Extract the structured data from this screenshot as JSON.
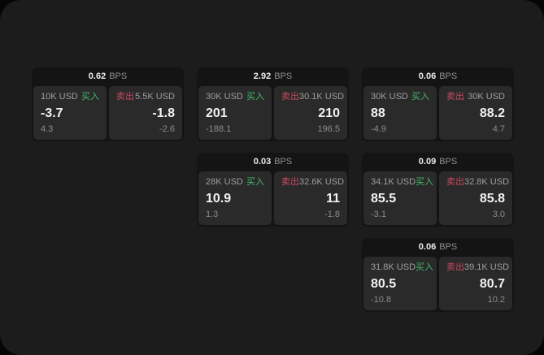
{
  "colors": {
    "buy_accent": "#43b86a",
    "sell_accent": "#c94a5f",
    "panel_background": "#2a2a2a",
    "card_background": "#141414",
    "screen_background": "#1c1c1c"
  },
  "labels": {
    "bps_unit": "BPS",
    "buy": "买入",
    "sell": "卖出"
  },
  "cards": [
    {
      "bps": "0.62",
      "buy": {
        "amount": "10K USD",
        "price": "-3.7",
        "delta": "4.3"
      },
      "sell": {
        "amount": "5.5K USD",
        "price": "-1.8",
        "delta": "-2.6"
      }
    },
    {
      "bps": "2.92",
      "buy": {
        "amount": "30K USD",
        "price": "201",
        "delta": "-188.1"
      },
      "sell": {
        "amount": "30.1K USD",
        "price": "210",
        "delta": "196.5"
      }
    },
    {
      "bps": "0.06",
      "buy": {
        "amount": "30K USD",
        "price": "88",
        "delta": "-4.9"
      },
      "sell": {
        "amount": "30K USD",
        "price": "88.2",
        "delta": "4.7"
      }
    },
    {
      "bps": "0.03",
      "buy": {
        "amount": "28K USD",
        "price": "10.9",
        "delta": "1.3"
      },
      "sell": {
        "amount": "32.6K USD",
        "price": "11",
        "delta": "-1.8"
      }
    },
    {
      "bps": "0.09",
      "buy": {
        "amount": "34.1K USD",
        "price": "85.5",
        "delta": "-3.1"
      },
      "sell": {
        "amount": "32.8K USD",
        "price": "85.8",
        "delta": "3.0"
      }
    },
    {
      "bps": "0.06",
      "buy": {
        "amount": "31.8K USD",
        "price": "80.5",
        "delta": "-10.8"
      },
      "sell": {
        "amount": "39.1K USD",
        "price": "80.7",
        "delta": "10.2"
      }
    }
  ]
}
